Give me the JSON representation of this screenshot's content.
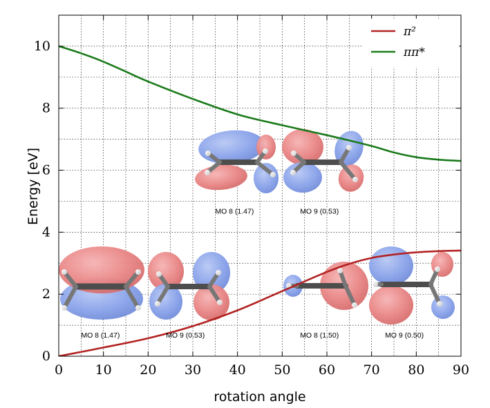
{
  "chart_data": {
    "type": "line",
    "xlabel": "rotation angle",
    "ylabel": "Energy [eV]",
    "xlim": [
      0,
      90
    ],
    "ylim": [
      0,
      11
    ],
    "x_ticks": [
      0,
      10,
      20,
      30,
      40,
      50,
      60,
      70,
      80,
      90
    ],
    "y_ticks": [
      0,
      2,
      4,
      6,
      8,
      10
    ],
    "grid": true,
    "legend": "top-right",
    "series": [
      {
        "name": "π²",
        "color": "#b22222",
        "x": [
          0,
          10,
          20,
          30,
          40,
          50,
          60,
          65,
          70,
          75,
          80,
          85,
          90
        ],
        "y": [
          0.0,
          0.28,
          0.58,
          0.97,
          1.48,
          2.1,
          2.72,
          2.98,
          3.17,
          3.28,
          3.35,
          3.39,
          3.41
        ]
      },
      {
        "name": "ππ*",
        "color": "#1a7a1a",
        "x": [
          0,
          5,
          10,
          15,
          20,
          30,
          40,
          50,
          60,
          70,
          75,
          80,
          85,
          90
        ],
        "y": [
          10.0,
          9.77,
          9.5,
          9.18,
          8.86,
          8.3,
          7.8,
          7.45,
          7.13,
          6.78,
          6.57,
          6.42,
          6.34,
          6.3
        ]
      }
    ],
    "annotations": [
      {
        "text": "MO 8 (1.47)",
        "x": 5,
        "y": 0.6,
        "phase": "symmetric"
      },
      {
        "text": "MO 9 (0.53)",
        "x": 24,
        "y": 0.6,
        "phase": "antisymmetric"
      },
      {
        "text": "MO 8 (1.47)",
        "x": 35,
        "y": 4.6,
        "phase": "twisted-bonding"
      },
      {
        "text": "MO 9 (0.53)",
        "x": 54,
        "y": 4.6,
        "phase": "twisted-antibonding"
      },
      {
        "text": "MO 8 (1.50)",
        "x": 54,
        "y": 0.6,
        "phase": "right-lobe"
      },
      {
        "text": "MO 9 (0.50)",
        "x": 73,
        "y": 0.6,
        "phase": "left-lobe"
      }
    ]
  }
}
